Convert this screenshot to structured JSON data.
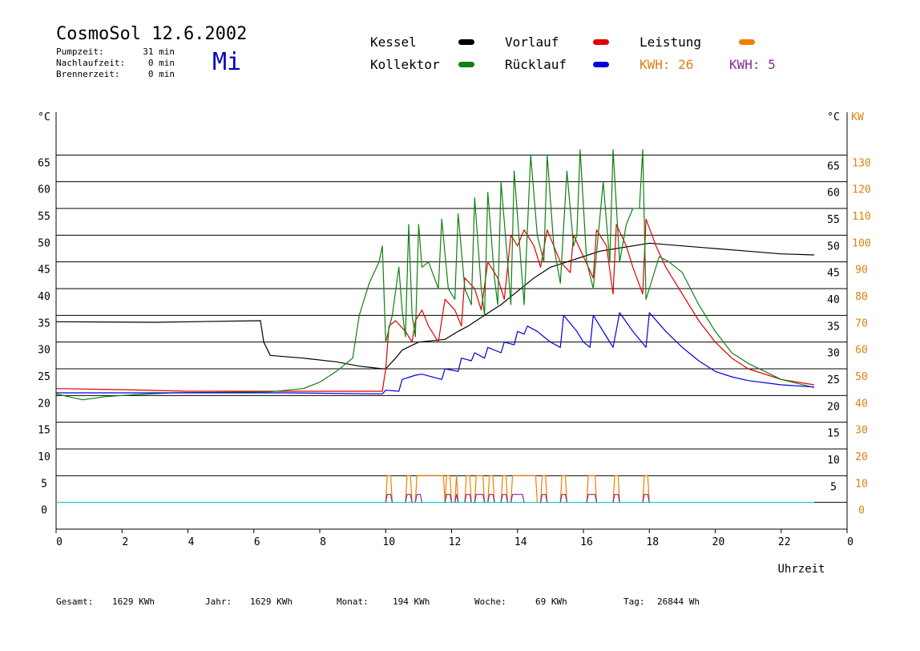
{
  "header": {
    "title": "CosmoSol 12.6.2002",
    "day": "Mi",
    "stats": [
      {
        "label": "Pumpzeit:",
        "value": "31 min"
      },
      {
        "label": "Nachlaufzeit:",
        "value": "0 min"
      },
      {
        "label": "Brennerzeit:",
        "value": "0 min"
      }
    ]
  },
  "legend": {
    "items": [
      {
        "label": "Kessel",
        "color": "#000000"
      },
      {
        "label": "Vorlauf",
        "color": "#e00000"
      },
      {
        "label": "Leistung",
        "color": "#f08000"
      },
      {
        "label": "Kollektor",
        "color": "#108010"
      },
      {
        "label": "Rücklauf",
        "color": "#0000e0"
      }
    ],
    "kwh": [
      {
        "text": "KWH: 26",
        "color": "#e08010"
      },
      {
        "text": "KWH: 5",
        "color": "#803090"
      }
    ]
  },
  "footer": {
    "items": [
      {
        "label": "Gesamt:",
        "value": "1629 KWh"
      },
      {
        "label": "Jahr:",
        "value": "1629 KWh"
      },
      {
        "label": "Monat:",
        "value": "194 KWh"
      },
      {
        "label": "Woche:",
        "value": "69 KWh"
      },
      {
        "label": "Tag:",
        "value": "26844 Wh"
      }
    ]
  },
  "chart_data": {
    "type": "line",
    "xlabel": "Uhrzeit",
    "xlim": [
      0,
      24
    ],
    "x_ticks": [
      "0",
      "2",
      "4",
      "6",
      "8",
      "10",
      "12",
      "14",
      "16",
      "18",
      "20",
      "22",
      "0"
    ],
    "y_left": {
      "unit": "°C",
      "ticks": [
        "0",
        "5",
        "10",
        "15",
        "20",
        "25",
        "30",
        "35",
        "40",
        "45",
        "50",
        "55",
        "60",
        "65"
      ],
      "ylim": [
        -5,
        70
      ]
    },
    "y_right_temp": {
      "unit": "°C",
      "ticks": [
        "5",
        "10",
        "15",
        "20",
        "25",
        "30",
        "35",
        "40",
        "45",
        "50",
        "55",
        "60",
        "65"
      ]
    },
    "y_right_power": {
      "unit": "KW",
      "ticks": [
        "0",
        "10",
        "20",
        "30",
        "40",
        "50",
        "60",
        "70",
        "80",
        "90",
        "100",
        "110",
        "120",
        "130"
      ]
    },
    "series": [
      {
        "name": "Kessel",
        "color": "#000000",
        "points": [
          [
            0,
            33.8
          ],
          [
            3,
            33.7
          ],
          [
            6.2,
            34
          ],
          [
            6.3,
            30
          ],
          [
            6.5,
            27.5
          ],
          [
            7.5,
            27
          ],
          [
            8.5,
            26.3
          ],
          [
            9.2,
            25.5
          ],
          [
            9.9,
            25
          ],
          [
            10,
            25
          ],
          [
            10.3,
            27
          ],
          [
            10.5,
            28.5
          ],
          [
            11,
            30
          ],
          [
            11.8,
            30.5
          ],
          [
            12.2,
            32
          ],
          [
            12.5,
            33
          ],
          [
            13,
            35
          ],
          [
            13.5,
            37
          ],
          [
            14,
            39.5
          ],
          [
            14.5,
            42
          ],
          [
            15,
            44
          ],
          [
            15.5,
            45
          ],
          [
            16,
            46
          ],
          [
            16.5,
            47
          ],
          [
            17,
            47.5
          ],
          [
            17.5,
            48
          ],
          [
            18,
            48.5
          ],
          [
            19,
            48
          ],
          [
            20,
            47.5
          ],
          [
            21,
            47
          ],
          [
            22,
            46.5
          ],
          [
            23,
            46.3
          ]
        ]
      },
      {
        "name": "Vorlauf",
        "color": "#e00000",
        "points": [
          [
            0,
            21.3
          ],
          [
            2,
            21.1
          ],
          [
            4,
            20.8
          ],
          [
            6,
            20.8
          ],
          [
            8,
            20.8
          ],
          [
            9.9,
            20.8
          ],
          [
            10,
            25
          ],
          [
            10.1,
            33
          ],
          [
            10.3,
            34
          ],
          [
            10.6,
            32
          ],
          [
            10.8,
            30
          ],
          [
            10.9,
            34
          ],
          [
            11.1,
            36
          ],
          [
            11.3,
            33
          ],
          [
            11.6,
            30
          ],
          [
            11.8,
            38
          ],
          [
            12.1,
            36
          ],
          [
            12.3,
            33
          ],
          [
            12.4,
            42
          ],
          [
            12.7,
            40
          ],
          [
            12.9,
            36
          ],
          [
            13.1,
            45
          ],
          [
            13.4,
            42
          ],
          [
            13.6,
            38
          ],
          [
            13.8,
            50
          ],
          [
            14.0,
            48
          ],
          [
            14.2,
            51
          ],
          [
            14.5,
            48
          ],
          [
            14.7,
            44
          ],
          [
            14.9,
            51
          ],
          [
            15.1,
            48
          ],
          [
            15.3,
            45
          ],
          [
            15.6,
            43
          ],
          [
            15.7,
            50
          ],
          [
            16.0,
            46
          ],
          [
            16.3,
            42
          ],
          [
            16.4,
            51
          ],
          [
            16.7,
            48
          ],
          [
            16.9,
            39
          ],
          [
            17.0,
            52
          ],
          [
            17.3,
            48
          ],
          [
            17.5,
            44
          ],
          [
            17.8,
            39
          ],
          [
            17.9,
            53
          ],
          [
            18.2,
            48
          ],
          [
            18.5,
            44
          ],
          [
            19,
            39
          ],
          [
            19.5,
            34
          ],
          [
            20,
            30
          ],
          [
            20.5,
            27
          ],
          [
            21,
            25
          ],
          [
            22,
            23
          ],
          [
            23,
            22
          ]
        ]
      },
      {
        "name": "Kollektor",
        "color": "#108010",
        "points": [
          [
            0,
            20.3
          ],
          [
            0.8,
            19.2
          ],
          [
            1.5,
            19.8
          ],
          [
            2.5,
            20.2
          ],
          [
            3.5,
            20.5
          ],
          [
            5,
            20.6
          ],
          [
            6.5,
            20.7
          ],
          [
            7.5,
            21.3
          ],
          [
            8,
            22.5
          ],
          [
            8.5,
            24.5
          ],
          [
            9,
            27
          ],
          [
            9.2,
            35
          ],
          [
            9.5,
            41
          ],
          [
            9.8,
            45
          ],
          [
            9.9,
            48
          ],
          [
            10,
            30
          ],
          [
            10.2,
            35
          ],
          [
            10.4,
            44
          ],
          [
            10.5,
            36
          ],
          [
            10.6,
            31
          ],
          [
            10.7,
            52
          ],
          [
            10.8,
            35
          ],
          [
            10.9,
            31
          ],
          [
            11,
            52
          ],
          [
            11.1,
            44
          ],
          [
            11.3,
            45
          ],
          [
            11.6,
            40
          ],
          [
            11.7,
            53
          ],
          [
            11.9,
            40
          ],
          [
            12.1,
            38
          ],
          [
            12.2,
            54
          ],
          [
            12.4,
            40
          ],
          [
            12.6,
            37
          ],
          [
            12.7,
            57
          ],
          [
            12.9,
            40
          ],
          [
            13.0,
            35
          ],
          [
            13.1,
            58
          ],
          [
            13.3,
            42
          ],
          [
            13.4,
            37
          ],
          [
            13.5,
            60
          ],
          [
            13.7,
            45
          ],
          [
            13.8,
            37
          ],
          [
            13.9,
            62
          ],
          [
            14.1,
            45
          ],
          [
            14.2,
            37
          ],
          [
            14.4,
            65
          ],
          [
            14.6,
            50
          ],
          [
            14.8,
            45
          ],
          [
            14.9,
            65
          ],
          [
            15.1,
            48
          ],
          [
            15.3,
            41
          ],
          [
            15.5,
            62
          ],
          [
            15.7,
            48
          ],
          [
            15.8,
            50
          ],
          [
            15.9,
            66
          ],
          [
            16.1,
            45
          ],
          [
            16.3,
            40
          ],
          [
            16.6,
            60
          ],
          [
            16.8,
            45
          ],
          [
            16.9,
            66
          ],
          [
            17.1,
            45
          ],
          [
            17.3,
            52
          ],
          [
            17.5,
            55
          ],
          [
            17.7,
            55
          ],
          [
            17.8,
            66
          ],
          [
            17.9,
            38
          ],
          [
            18.3,
            46
          ],
          [
            18.6,
            45
          ],
          [
            19,
            43
          ],
          [
            19.5,
            37
          ],
          [
            20,
            32
          ],
          [
            20.5,
            28
          ],
          [
            21,
            26
          ],
          [
            22,
            23
          ],
          [
            23,
            21.5
          ]
        ]
      },
      {
        "name": "Rücklauf",
        "color": "#0000e0",
        "points": [
          [
            0,
            20.5
          ],
          [
            4,
            20.5
          ],
          [
            7,
            20.5
          ],
          [
            9.9,
            20.3
          ],
          [
            10,
            21
          ],
          [
            10.4,
            20.8
          ],
          [
            10.5,
            23
          ],
          [
            10.9,
            23.8
          ],
          [
            11.1,
            24
          ],
          [
            11.7,
            23
          ],
          [
            11.8,
            25
          ],
          [
            12.2,
            24.5
          ],
          [
            12.3,
            27
          ],
          [
            12.6,
            26.5
          ],
          [
            12.7,
            28
          ],
          [
            13.0,
            27
          ],
          [
            13.1,
            29
          ],
          [
            13.5,
            28
          ],
          [
            13.6,
            30
          ],
          [
            13.9,
            29.5
          ],
          [
            14.0,
            32
          ],
          [
            14.2,
            31.5
          ],
          [
            14.3,
            33
          ],
          [
            14.6,
            32
          ],
          [
            14.8,
            31
          ],
          [
            15.0,
            30
          ],
          [
            15.3,
            29
          ],
          [
            15.4,
            35
          ],
          [
            15.8,
            32
          ],
          [
            16.0,
            30
          ],
          [
            16.2,
            29
          ],
          [
            16.3,
            35
          ],
          [
            16.7,
            31
          ],
          [
            16.9,
            29
          ],
          [
            17.1,
            35.5
          ],
          [
            17.5,
            32
          ],
          [
            17.9,
            29
          ],
          [
            18.0,
            35.5
          ],
          [
            18.5,
            32
          ],
          [
            19,
            29
          ],
          [
            19.5,
            26.5
          ],
          [
            20,
            24.5
          ],
          [
            20.5,
            23.5
          ],
          [
            21,
            22.8
          ],
          [
            22,
            22.0
          ],
          [
            23,
            21.6
          ]
        ]
      }
    ],
    "power_series": [
      {
        "name": "Leistung",
        "color": "#f08000",
        "pulses": [
          [
            10,
            10.2
          ],
          [
            10.6,
            10.8
          ],
          [
            10.9,
            11.8
          ],
          [
            11.8,
            12.0
          ],
          [
            12.1,
            12.2
          ],
          [
            12.4,
            12.6
          ],
          [
            12.7,
            13.0
          ],
          [
            13.1,
            13.3
          ],
          [
            13.5,
            13.7
          ],
          [
            13.8,
            14.6
          ],
          [
            14.7,
            14.9
          ],
          [
            15.3,
            15.5
          ],
          [
            16.1,
            16.4
          ],
          [
            16.9,
            17.1
          ],
          [
            17.8,
            18.0
          ]
        ],
        "level": 10
      },
      {
        "name": "",
        "color": "#803090",
        "pulses": [
          [
            10,
            10.2
          ],
          [
            10.6,
            10.8
          ],
          [
            10.9,
            11.1
          ],
          [
            11.8,
            12.0
          ],
          [
            12.1,
            12.2
          ],
          [
            12.4,
            12.6
          ],
          [
            12.7,
            13.0
          ],
          [
            13.1,
            13.3
          ],
          [
            13.5,
            13.7
          ],
          [
            13.8,
            14.2
          ],
          [
            14.7,
            14.9
          ],
          [
            15.3,
            15.5
          ],
          [
            16.1,
            16.4
          ],
          [
            16.9,
            17.1
          ],
          [
            17.8,
            18.0
          ]
        ],
        "level": 3
      }
    ],
    "baseline_color": "#00c8c8"
  }
}
